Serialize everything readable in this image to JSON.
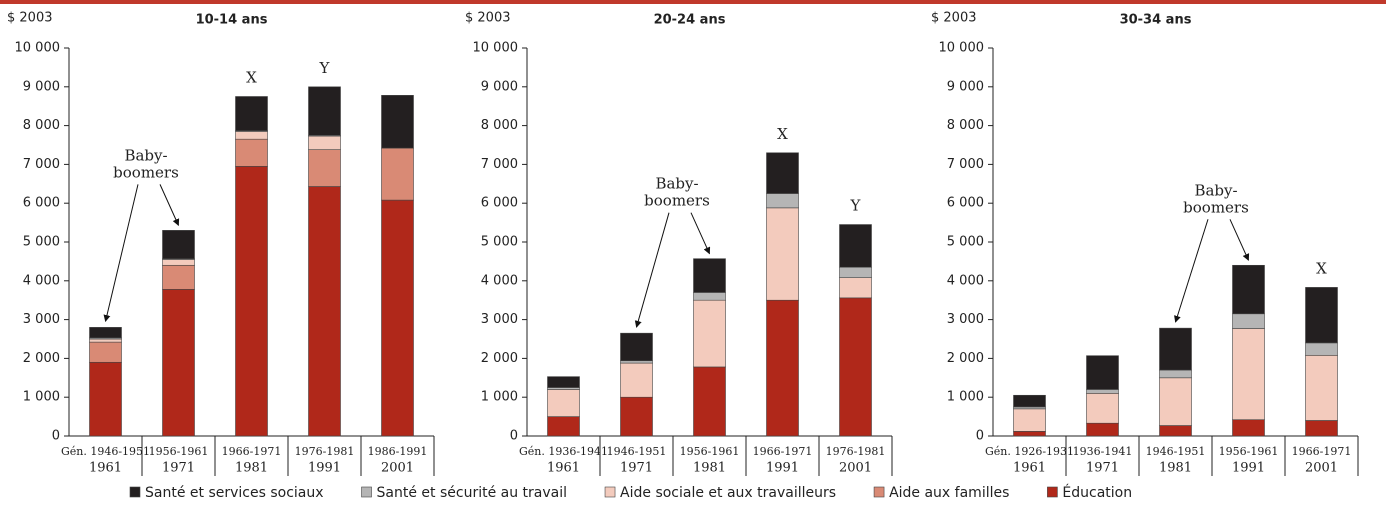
{
  "chart_data": [
    {
      "type": "bar",
      "stacked": true,
      "title": "10-14 ans",
      "ylabel": "$ 2003",
      "categories": [
        [
          "Gén. 1946-1951",
          "1961"
        ],
        [
          "1956-1961",
          "1971"
        ],
        [
          "1966-1971",
          "1981"
        ],
        [
          "1976-1981",
          "1991"
        ],
        [
          "1986-1991",
          "2001"
        ]
      ],
      "series": [
        {
          "name": "Santé et services sociaux",
          "color": "#231f20",
          "values": [
            270,
            730,
            880,
            1250,
            1360
          ]
        },
        {
          "name": "Santé et sécurité au travail",
          "color": "#b5b5b5",
          "values": [
            30,
            20,
            20,
            20,
            0
          ]
        },
        {
          "name": "Aide sociale et aux travailleurs",
          "color": "#f3cbbd",
          "values": [
            80,
            150,
            200,
            350,
            0
          ]
        },
        {
          "name": "Aide aux familles",
          "color": "#d98a75",
          "values": [
            520,
            620,
            700,
            950,
            1340
          ]
        },
        {
          "name": "Éducation",
          "color": "#b0281a",
          "values": [
            1900,
            3780,
            6950,
            6430,
            6080
          ]
        }
      ],
      "bar_labels": [
        null,
        null,
        "X",
        "Y",
        null
      ],
      "annotation": [
        "Baby-",
        "boomers"
      ],
      "ylim": [
        0,
        10000
      ],
      "yticks": [
        0,
        {
          "value": 1000,
          "label": "1 000"
        },
        {
          "value": 2000,
          "label": "2 000"
        },
        {
          "value": 3000,
          "label": "3 000"
        },
        {
          "value": 4000,
          "label": "4 000"
        },
        {
          "value": 5000,
          "label": "5 000"
        },
        {
          "value": 6000,
          "label": "6 000"
        },
        {
          "value": 7000,
          "label": "7 000"
        },
        {
          "value": 8000,
          "label": "8 000"
        },
        {
          "value": 9000,
          "label": "9 000"
        },
        {
          "value": 10000,
          "label": "10 000"
        }
      ]
    },
    {
      "type": "bar",
      "stacked": true,
      "title": "20-24 ans",
      "ylabel": "$ 2003",
      "categories": [
        [
          "Gén. 1936-1941",
          "1961"
        ],
        [
          "1946-1951",
          "1971"
        ],
        [
          "1956-1961",
          "1981"
        ],
        [
          "1966-1971",
          "1991"
        ],
        [
          "1976-1981",
          "2001"
        ]
      ],
      "series": [
        {
          "name": "Santé et services sociaux",
          "color": "#231f20",
          "values": [
            280,
            710,
            870,
            1050,
            1100
          ]
        },
        {
          "name": "Santé et sécurité au travail",
          "color": "#b5b5b5",
          "values": [
            50,
            60,
            200,
            370,
            270
          ]
        },
        {
          "name": "Aide sociale et aux travailleurs",
          "color": "#f3cbbd",
          "values": [
            700,
            880,
            1720,
            2380,
            520
          ]
        },
        {
          "name": "Aide aux familles",
          "color": "#d98a75",
          "values": [
            0,
            0,
            0,
            0,
            0
          ]
        },
        {
          "name": "Éducation",
          "color": "#b0281a",
          "values": [
            500,
            1000,
            1780,
            3500,
            3560
          ]
        }
      ],
      "bar_labels": [
        null,
        null,
        null,
        "X",
        "Y"
      ],
      "annotation": [
        "Baby-",
        "boomers"
      ],
      "ylim": [
        0,
        10000
      ],
      "yticks": [
        0,
        {
          "value": 1000,
          "label": "1 000"
        },
        {
          "value": 2000,
          "label": "2 000"
        },
        {
          "value": 3000,
          "label": "3 000"
        },
        {
          "value": 4000,
          "label": "4 000"
        },
        {
          "value": 5000,
          "label": "5 000"
        },
        {
          "value": 6000,
          "label": "6 000"
        },
        {
          "value": 7000,
          "label": "7 000"
        },
        {
          "value": 8000,
          "label": "8 000"
        },
        {
          "value": 9000,
          "label": "9 000"
        },
        {
          "value": 10000,
          "label": "10 000"
        }
      ]
    },
    {
      "type": "bar",
      "stacked": true,
      "title": "30-34 ans",
      "ylabel": "$ 2003",
      "categories": [
        [
          "Gén. 1926-1931",
          "1961"
        ],
        [
          "1936-1941",
          "1971"
        ],
        [
          "1946-1951",
          "1981"
        ],
        [
          "1956-1961",
          "1991"
        ],
        [
          "1966-1971",
          "2001"
        ]
      ],
      "series": [
        {
          "name": "Santé et services sociaux",
          "color": "#231f20",
          "values": [
            300,
            870,
            1080,
            1250,
            1430
          ]
        },
        {
          "name": "Santé et sécurité au travail",
          "color": "#b5b5b5",
          "values": [
            50,
            100,
            200,
            380,
            320
          ]
        },
        {
          "name": "Aide sociale et aux travailleurs",
          "color": "#f3cbbd",
          "values": [
            580,
            770,
            1230,
            2350,
            1680
          ]
        },
        {
          "name": "Aide aux familles",
          "color": "#d98a75",
          "values": [
            0,
            0,
            0,
            0,
            0
          ]
        },
        {
          "name": "Éducation",
          "color": "#b0281a",
          "values": [
            120,
            330,
            270,
            420,
            400
          ]
        }
      ],
      "bar_labels": [
        null,
        null,
        null,
        null,
        "X"
      ],
      "annotation": [
        "Baby-",
        "boomers"
      ],
      "ylim": [
        0,
        10000
      ],
      "yticks": [
        0,
        {
          "value": 1000,
          "label": "1 000"
        },
        {
          "value": 2000,
          "label": "2 000"
        },
        {
          "value": 3000,
          "label": "3 000"
        },
        {
          "value": 4000,
          "label": "4 000"
        },
        {
          "value": 5000,
          "label": "5 000"
        },
        {
          "value": 6000,
          "label": "6 000"
        },
        {
          "value": 7000,
          "label": "7 000"
        },
        {
          "value": 8000,
          "label": "8 000"
        },
        {
          "value": 9000,
          "label": "9 000"
        },
        {
          "value": 10000,
          "label": "10 000"
        }
      ]
    }
  ]
}
